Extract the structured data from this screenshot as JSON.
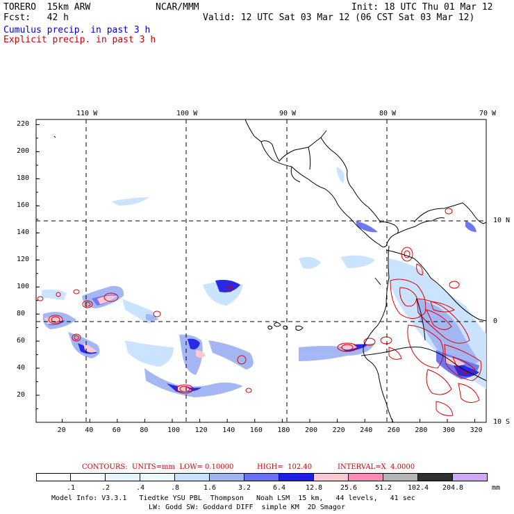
{
  "header": {
    "model": "TORERO  15km ARW",
    "center": "NCAR/MMM",
    "init": "Init: 18 UTC Thu 01 Mar 12",
    "fcst": "Fcst:   42 h",
    "valid": "Valid: 12 UTC Sat 03 Mar 12 (06 CST Sat 03 Mar 12)",
    "field1": "Cumulus precip. in past 3 h",
    "field2": "Explicit precip. in past 3 h",
    "field1_color": "#0000cc",
    "field2_color": "#cc0000"
  },
  "map": {
    "top_lon_labels": [
      "110 W",
      "100 W",
      "90 W",
      "80 W",
      "70 W"
    ],
    "right_lat_labels": [
      "10 N",
      "0",
      "10 S"
    ],
    "y_ticks": [
      "220",
      "200",
      "180",
      "160",
      "140",
      "120",
      "100",
      "80",
      "60",
      "40",
      "20"
    ],
    "x_ticks": [
      "20",
      "40",
      "60",
      "80",
      "100",
      "120",
      "140",
      "160",
      "180",
      "200",
      "220",
      "240",
      "260",
      "280",
      "300",
      "320"
    ]
  },
  "contours": {
    "units": "CONTOURS:  UNITS=mm  LOW= 0.10000",
    "high": "HIGH=  102.40",
    "interval": "INTERVAL=X  4.0000"
  },
  "colorbar": {
    "labels": [
      ".1",
      ".2",
      ".4",
      ".8",
      "1.6",
      "3.2",
      "6.4",
      "12.8",
      "25.6",
      "51.2",
      "102.4",
      "204.8"
    ],
    "unit": "mm",
    "colors": [
      "#ffffff",
      "#ffffff",
      "#e6f4ff",
      "#eafcfc",
      "#c8e2ff",
      "#a0b4f4",
      "#6670f0",
      "#1e1ee8",
      "#fcc8d4",
      "#f88cb4",
      "#b4b4b4",
      "#303030",
      "#d0a8f8"
    ]
  },
  "footer": {
    "line1": "Model Info: V3.3.1   Tiedtke YSU PBL  Thompson   Noah LSM  15 km,   44 levels,   41 sec",
    "line2": "LW: Godd SW: Goddard DIFF  simple KM  2D Smagor"
  }
}
